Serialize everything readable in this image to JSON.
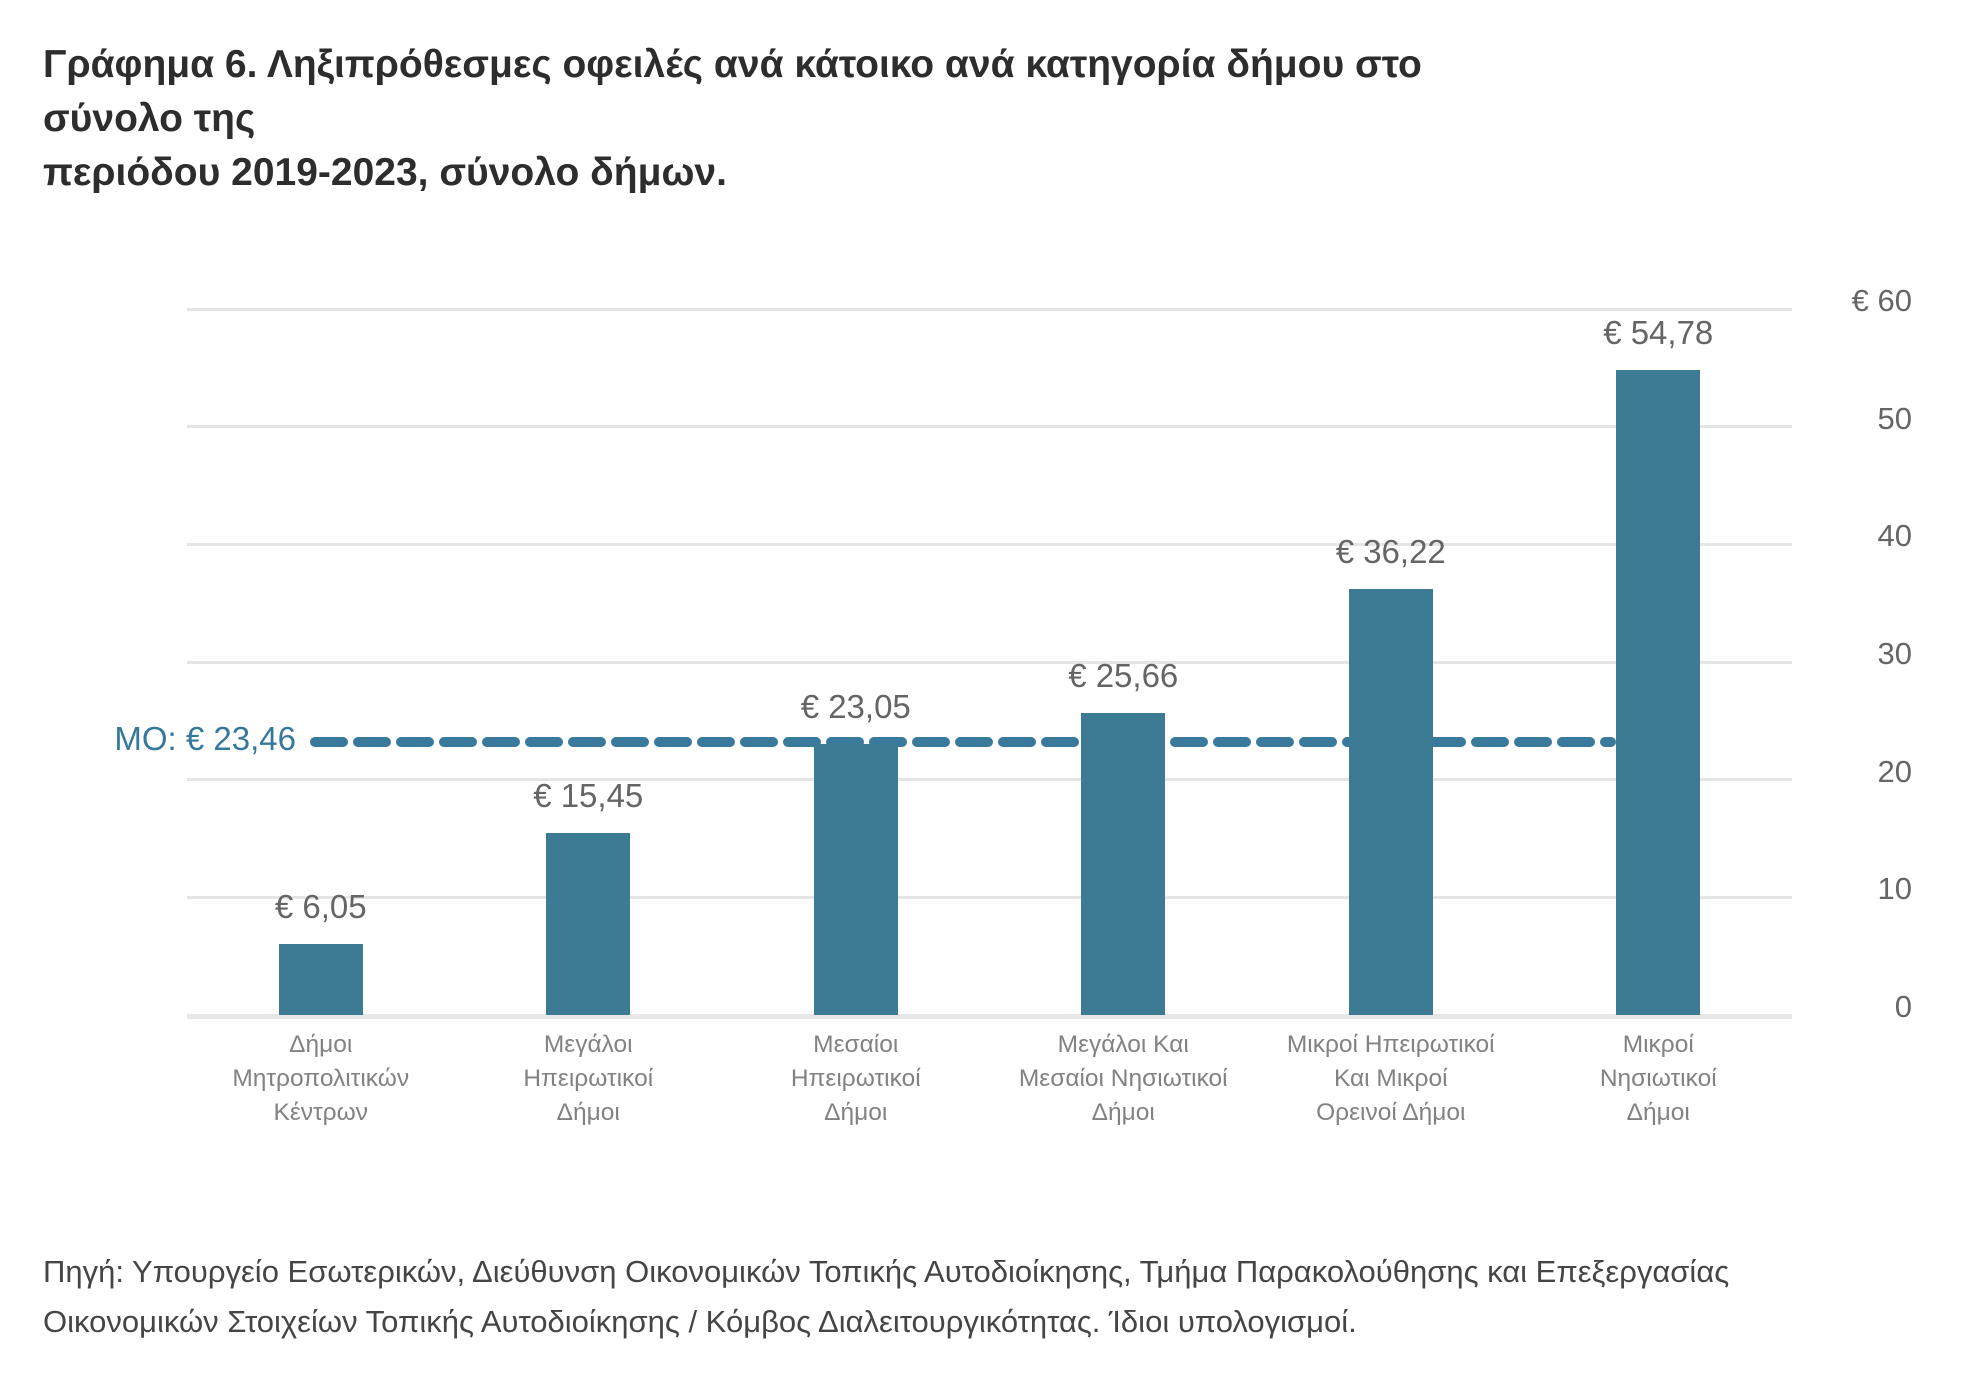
{
  "title_lines": [
    "Γράφημα 6. Ληξιπρόθεσμες οφειλές ανά κάτοικο ανά κατηγορία δήμου στο σύνολο της",
    "περιόδου 2019-2023, σύνολο δήμων."
  ],
  "title_full": "Γράφημα 6. Ληξιπρόθεσμες οφειλές ανά κάτοικο ανά κατηγορία δήμου στο σύνολο της περιόδου 2019-2023, σύνολο δήμων.",
  "source": {
    "lines": [
      "Πηγή: Υπουργείο Εσωτερικών, Διεύθυνση Οικονομικών Τοπικής Αυτοδιοίκησης, Τμήμα Παρακολούθησης και Επεξεργασίας",
      "Οικονομικών Στοιχείων Τοπικής Αυτοδιοίκησης / Κόμβος Διαλειτουργικότητας. Ίδιοι υπολογισμοί."
    ]
  },
  "chart_data": {
    "type": "bar",
    "title": "Γράφημα 6. Ληξιπρόθεσμες οφειλές ανά κάτοικο ανά κατηγορία δήμου στο σύνολο της περιόδου 2019-2023, σύνολο δήμων.",
    "categories": [
      "Δήμοι Μητροπολιτικών Κέντρων",
      "Μεγάλοι Ηπειρωτικοί Δήμοι",
      "Μεσαίοι Ηπειρωτικοί Δήμοι",
      "Μεγάλοι Και Μεσαίοι Νησιωτικοί Δήμοι",
      "Μικροί Ηπειρωτικοί Και Μικροί Ορεινοί Δήμοι",
      "Μικροί Νησιωτικοί Δήμοι"
    ],
    "category_lines": [
      [
        "Δήμοι",
        "Μητροπολιτικών",
        "Κέντρων"
      ],
      [
        "Μεγάλοι",
        "Ηπειρωτικοί",
        "Δήμοι"
      ],
      [
        "Μεσαίοι",
        "Ηπειρωτικοί",
        "Δήμοι"
      ],
      [
        "Μεγάλοι Και",
        "Μεσαίοι Νησιωτικοί",
        "Δήμοι"
      ],
      [
        "Μικροί Ηπειρωτικοί",
        "Και Μικροί",
        "Ορεινοί Δήμοι"
      ],
      [
        "Μικροί",
        "Νησιωτικοί",
        "Δήμοι"
      ]
    ],
    "values": [
      6.05,
      15.45,
      23.05,
      25.66,
      36.22,
      54.78
    ],
    "value_labels": [
      "€ 6,05",
      "€ 15,45",
      "€ 23,05",
      "€ 25,66",
      "€ 36,22",
      "€ 54,78"
    ],
    "mean": {
      "value": 23.46,
      "label": "ΜΟ: € 23,46"
    },
    "y_axis": {
      "side": "right",
      "min": 0,
      "max": 60,
      "ticks": [
        0,
        10,
        20,
        30,
        40,
        50,
        60
      ],
      "tick_labels": [
        "0",
        "10",
        "20",
        "30",
        "40",
        "50",
        "€ 60"
      ]
    },
    "grid": true,
    "legend": false,
    "colors": {
      "bar": "#3d7b95",
      "mean_line": "#38799c",
      "mean_label": "#36789c",
      "grid": "#e5e5e5",
      "value_label": "#656565",
      "category_label": "#828282",
      "tick_label": "#666666",
      "title": "#2d2d2d"
    }
  }
}
